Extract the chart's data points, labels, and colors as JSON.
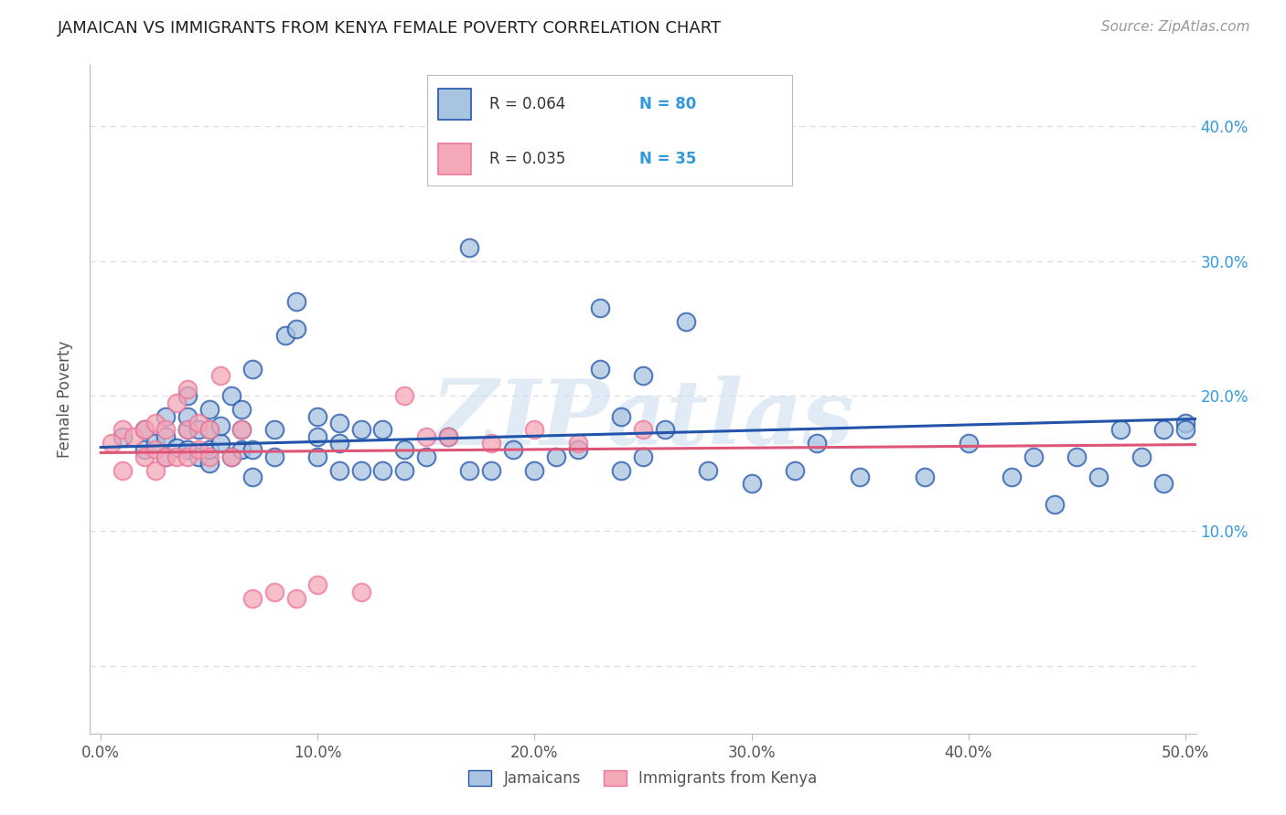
{
  "title": "JAMAICAN VS IMMIGRANTS FROM KENYA FEMALE POVERTY CORRELATION CHART",
  "source_text": "Source: ZipAtlas.com",
  "ylabel": "Female Poverty",
  "xlim": [
    -0.005,
    0.505
  ],
  "ylim": [
    -0.05,
    0.445
  ],
  "xtick_vals": [
    0.0,
    0.1,
    0.2,
    0.3,
    0.4,
    0.5
  ],
  "xtick_labels": [
    "0.0%",
    "10.0%",
    "20.0%",
    "30.0%",
    "40.0%",
    "50.0%"
  ],
  "ytick_vals": [
    0.0,
    0.1,
    0.2,
    0.3,
    0.4
  ],
  "ytick_labels": [
    "",
    "10.0%",
    "20.0%",
    "30.0%",
    "40.0%"
  ],
  "legend_r1": "R = 0.064",
  "legend_n1": "N = 80",
  "legend_r2": "R = 0.035",
  "legend_n2": "N = 35",
  "legend_label1": "Jamaicans",
  "legend_label2": "Immigrants from Kenya",
  "color_blue": "#A8C4E0",
  "color_pink": "#F4A8B8",
  "color_blue_line": "#2255AA",
  "color_pink_line": "#DD5577",
  "color_blue_dark": "#3366CC",
  "color_pink_dark": "#EE7799",
  "watermark": "ZIPatlas",
  "background_color": "#FFFFFF",
  "grid_color": "#DDDDDD",
  "title_color": "#222222",
  "tick_color": "#555555",
  "right_tick_color": "#3399DD",
  "blue_trend_x0": 0.0,
  "blue_trend_y0": 0.162,
  "blue_trend_x1": 0.505,
  "blue_trend_y1": 0.183,
  "pink_trend_x0": 0.0,
  "pink_trend_y0": 0.158,
  "pink_trend_x1": 0.505,
  "pink_trend_y1": 0.164,
  "jamaicans_x": [
    0.01,
    0.02,
    0.02,
    0.025,
    0.03,
    0.03,
    0.03,
    0.035,
    0.04,
    0.04,
    0.04,
    0.04,
    0.045,
    0.045,
    0.05,
    0.05,
    0.05,
    0.05,
    0.055,
    0.055,
    0.06,
    0.06,
    0.065,
    0.065,
    0.065,
    0.07,
    0.07,
    0.07,
    0.08,
    0.08,
    0.085,
    0.09,
    0.09,
    0.1,
    0.1,
    0.1,
    0.11,
    0.11,
    0.11,
    0.12,
    0.12,
    0.13,
    0.13,
    0.14,
    0.14,
    0.15,
    0.16,
    0.17,
    0.17,
    0.18,
    0.19,
    0.2,
    0.21,
    0.22,
    0.23,
    0.23,
    0.24,
    0.24,
    0.25,
    0.25,
    0.26,
    0.27,
    0.28,
    0.3,
    0.32,
    0.33,
    0.35,
    0.38,
    0.4,
    0.42,
    0.43,
    0.44,
    0.45,
    0.46,
    0.47,
    0.48,
    0.49,
    0.49,
    0.5,
    0.5
  ],
  "jamaicans_y": [
    0.17,
    0.175,
    0.16,
    0.165,
    0.155,
    0.17,
    0.185,
    0.162,
    0.16,
    0.175,
    0.185,
    0.2,
    0.155,
    0.175,
    0.15,
    0.16,
    0.175,
    0.19,
    0.165,
    0.178,
    0.155,
    0.2,
    0.16,
    0.175,
    0.19,
    0.14,
    0.16,
    0.22,
    0.155,
    0.175,
    0.245,
    0.25,
    0.27,
    0.155,
    0.17,
    0.185,
    0.145,
    0.165,
    0.18,
    0.145,
    0.175,
    0.145,
    0.175,
    0.145,
    0.16,
    0.155,
    0.17,
    0.145,
    0.31,
    0.145,
    0.16,
    0.145,
    0.155,
    0.16,
    0.265,
    0.22,
    0.145,
    0.185,
    0.155,
    0.215,
    0.175,
    0.255,
    0.145,
    0.135,
    0.145,
    0.165,
    0.14,
    0.14,
    0.165,
    0.14,
    0.155,
    0.12,
    0.155,
    0.14,
    0.175,
    0.155,
    0.135,
    0.175,
    0.18,
    0.175
  ],
  "kenya_x": [
    0.005,
    0.01,
    0.01,
    0.015,
    0.02,
    0.02,
    0.025,
    0.025,
    0.025,
    0.03,
    0.03,
    0.035,
    0.035,
    0.04,
    0.04,
    0.04,
    0.045,
    0.045,
    0.05,
    0.05,
    0.055,
    0.06,
    0.065,
    0.07,
    0.08,
    0.09,
    0.1,
    0.12,
    0.14,
    0.15,
    0.16,
    0.18,
    0.2,
    0.22,
    0.25
  ],
  "kenya_y": [
    0.165,
    0.145,
    0.175,
    0.17,
    0.155,
    0.175,
    0.145,
    0.16,
    0.18,
    0.155,
    0.175,
    0.155,
    0.195,
    0.155,
    0.175,
    0.205,
    0.16,
    0.18,
    0.155,
    0.175,
    0.215,
    0.155,
    0.175,
    0.05,
    0.055,
    0.05,
    0.06,
    0.055,
    0.2,
    0.17,
    0.17,
    0.165,
    0.175,
    0.165,
    0.175
  ]
}
